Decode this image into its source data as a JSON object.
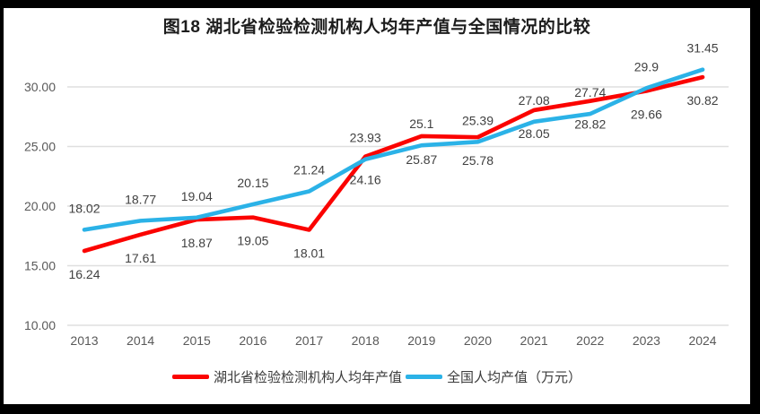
{
  "chart_data": {
    "type": "line",
    "title": "图18  湖北省检验检测机构人均年产值与全国情况的比较",
    "categories": [
      "2013",
      "2014",
      "2015",
      "2016",
      "2017",
      "2018",
      "2019",
      "2020",
      "2021",
      "2022",
      "2023",
      "2024"
    ],
    "series": [
      {
        "name": "湖北省检验检测机构人均年产值",
        "color": "#fb0300",
        "values": [
          16.24,
          17.61,
          18.87,
          19.05,
          18.01,
          24.16,
          25.87,
          25.78,
          28.05,
          28.82,
          29.66,
          30.82
        ],
        "labels": [
          "16.24",
          "17.61",
          "18.87",
          "19.05",
          "18.01",
          "24.16",
          "25.87",
          "25.78",
          "28.05",
          "28.82",
          "29.66",
          "30.82"
        ],
        "label_position": "below"
      },
      {
        "name": "全国人均产值（万元）",
        "color": "#2bb2e7",
        "values": [
          18.02,
          18.77,
          19.04,
          20.15,
          21.24,
          23.93,
          25.1,
          25.39,
          27.08,
          27.74,
          29.9,
          31.45
        ],
        "labels": [
          "18.02",
          "18.77",
          "19.04",
          "20.15",
          "21.24",
          "23.93",
          "25.1",
          "25.39",
          "27.08",
          "27.74",
          "29.9",
          "31.45"
        ],
        "label_position": "above"
      }
    ],
    "y_ticks": [
      {
        "value": 30,
        "label": "30.00"
      },
      {
        "value": 25,
        "label": "25.00"
      },
      {
        "value": 20,
        "label": "20.00"
      },
      {
        "value": 15,
        "label": "15.00"
      },
      {
        "value": 10,
        "label": "10.00"
      }
    ],
    "ylim": [
      10,
      32.6
    ],
    "grid": true,
    "gridline_color": "#dfdfdf",
    "legend_position": "bottom",
    "data_labels": true
  }
}
